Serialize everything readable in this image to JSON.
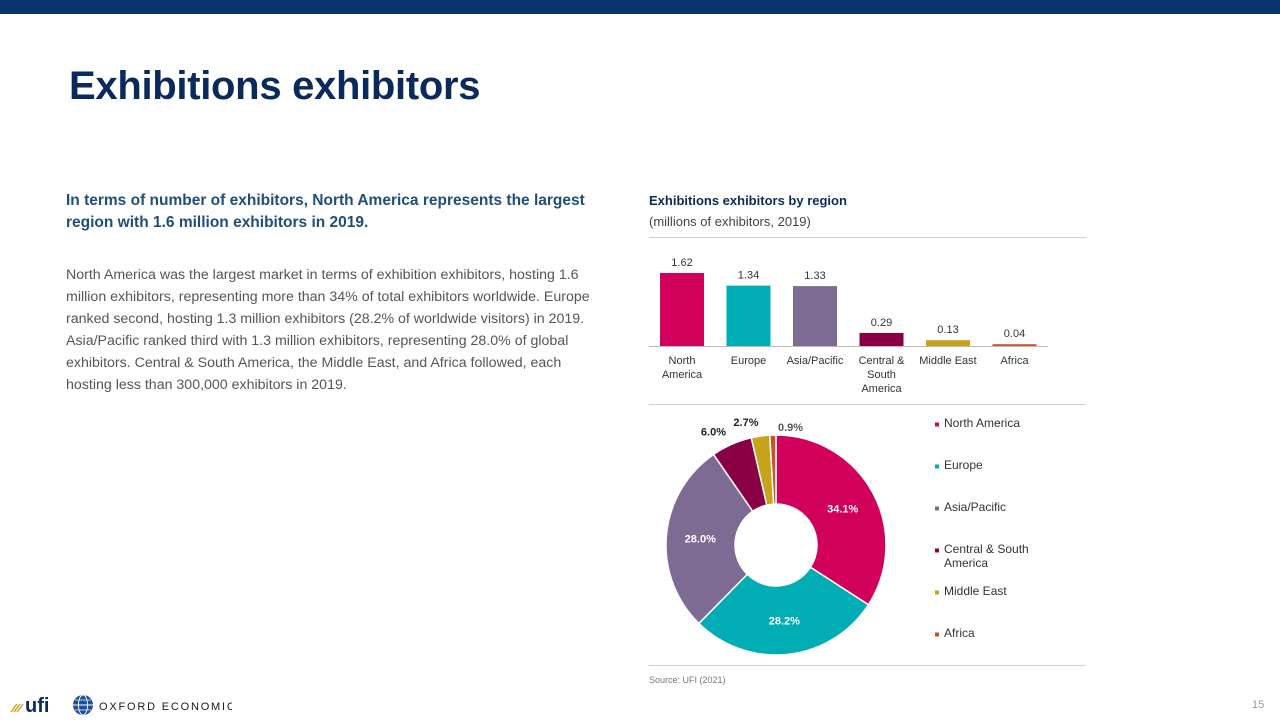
{
  "header": {
    "title": "Exhibitions exhibitors"
  },
  "text": {
    "lead": "In terms of number of exhibitors, North America represents the largest region with 1.6 million exhibitors in 2019.",
    "body": "North America was the largest market in terms of exhibition exhibitors, hosting 1.6 million exhibitors, representing more than 34% of total exhibitors worldwide. Europe ranked second, hosting 1.3 million exhibitors (28.2% of worldwide visitors) in 2019. Asia/Pacific ranked third with 1.3 million exhibitors, representing 28.0% of global exhibitors. Central & South America, the Middle East, and Africa followed, each hosting less than 300,000 exhibitors in 2019."
  },
  "chart_header": {
    "title": "Exhibitions exhibitors by region",
    "subtitle": "(millions of exhibitors, 2019)"
  },
  "chart_data": [
    {
      "type": "bar",
      "categories": [
        "North America",
        "Europe",
        "Asia/Pacific",
        "Central & South America",
        "Middle East",
        "Africa"
      ],
      "category_lines": [
        [
          "North",
          "America"
        ],
        [
          "Europe"
        ],
        [
          "Asia/Pacific"
        ],
        [
          "Central &",
          "South",
          "America"
        ],
        [
          "Middle East"
        ],
        [
          "Africa"
        ]
      ],
      "values": [
        1.62,
        1.34,
        1.33,
        0.29,
        0.13,
        0.04
      ],
      "value_labels": [
        "1.62",
        "1.34",
        "1.33",
        "0.29",
        "0.13",
        "0.04"
      ],
      "colors": [
        "#d0005b",
        "#00adb5",
        "#7e6b93",
        "#8a0045",
        "#c9a21b",
        "#c4552b"
      ],
      "ylim": [
        0,
        1.62
      ],
      "grid": false,
      "title": "",
      "xlabel": "",
      "ylabel": ""
    },
    {
      "type": "pie",
      "donut": true,
      "labels": [
        "North America",
        "Europe",
        "Asia/Pacific",
        "Central & South America",
        "Middle East",
        "Africa"
      ],
      "legend_lines": [
        [
          "North America"
        ],
        [
          "Europe"
        ],
        [
          "Asia/Pacific"
        ],
        [
          "Central & South",
          "America"
        ],
        [
          "Middle East"
        ],
        [
          "Africa"
        ]
      ],
      "values": [
        34.1,
        28.2,
        28.0,
        6.0,
        2.7,
        0.9
      ],
      "value_labels": [
        "34.1%",
        "28.2%",
        "28.0%",
        "6.0%",
        "2.7%",
        "0.9%"
      ],
      "colors": [
        "#d0005b",
        "#00adb5",
        "#7e6b93",
        "#8a0045",
        "#c9a21b",
        "#c4552b"
      ],
      "legend_position": "right"
    }
  ],
  "footer": {
    "source": "Source: UFI (2021)",
    "page_number": "15",
    "logos": [
      "ufi",
      "OXFORD ECONOMICS"
    ]
  }
}
